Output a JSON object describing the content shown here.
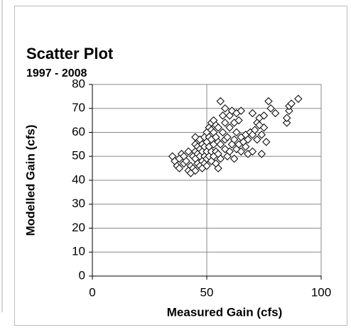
{
  "chart_data": {
    "type": "scatter",
    "title": "Scatter Plot",
    "subtitle": "1997 - 2008",
    "x_label": "Measured Gain (cfs)",
    "y_label": "Modelled Gain (cfs)",
    "xlim": [
      0,
      100
    ],
    "xticks": [
      0,
      50,
      100
    ],
    "ylim": [
      0,
      80
    ],
    "yticks": [
      0,
      10,
      20,
      30,
      40,
      50,
      60,
      70,
      80
    ],
    "grid": true,
    "marker": "diamond",
    "color": "#000000",
    "x": [
      35,
      36,
      37,
      38,
      38,
      39,
      40,
      40,
      41,
      42,
      42,
      43,
      43,
      44,
      44,
      45,
      45,
      45,
      45,
      45,
      46,
      46,
      46,
      47,
      47,
      47,
      47,
      48,
      48,
      48,
      48,
      49,
      49,
      49,
      49,
      50,
      50,
      50,
      50,
      50,
      51,
      51,
      51,
      51,
      52,
      52,
      52,
      52,
      52,
      53,
      53,
      53,
      53,
      54,
      54,
      54,
      54,
      55,
      55,
      55,
      55,
      56,
      56,
      56,
      57,
      57,
      58,
      58,
      58,
      58,
      59,
      59,
      60,
      60,
      60,
      61,
      61,
      62,
      62,
      62,
      63,
      63,
      63,
      64,
      64,
      65,
      65,
      65,
      66,
      67,
      67,
      68,
      68,
      69,
      70,
      70,
      70,
      71,
      72,
      72,
      73,
      73,
      74,
      74,
      75,
      75,
      76,
      77,
      78,
      80,
      85,
      85,
      86,
      86,
      87,
      90
    ],
    "values": [
      50,
      48,
      46,
      45,
      49,
      51,
      50,
      47,
      48,
      44,
      52,
      43,
      46,
      45,
      50,
      44,
      49,
      52,
      55,
      58,
      47,
      51,
      54,
      46,
      50,
      53,
      57,
      45,
      48,
      52,
      55,
      47,
      50,
      54,
      58,
      46,
      49,
      52,
      56,
      60,
      50,
      54,
      58,
      62,
      48,
      52,
      57,
      61,
      64,
      50,
      55,
      60,
      65,
      47,
      52,
      58,
      63,
      45,
      51,
      56,
      62,
      73,
      49,
      55,
      60,
      67,
      53,
      57,
      64,
      70,
      50,
      58,
      52,
      62,
      67,
      55,
      69,
      49,
      57,
      64,
      53,
      60,
      68,
      55,
      65,
      52,
      58,
      69,
      56,
      54,
      59,
      51,
      57,
      60,
      52,
      59,
      68,
      61,
      64,
      57,
      66,
      63,
      51,
      59,
      62,
      67,
      56,
      73,
      70,
      68,
      64,
      66,
      69,
      71,
      72,
      74
    ]
  }
}
